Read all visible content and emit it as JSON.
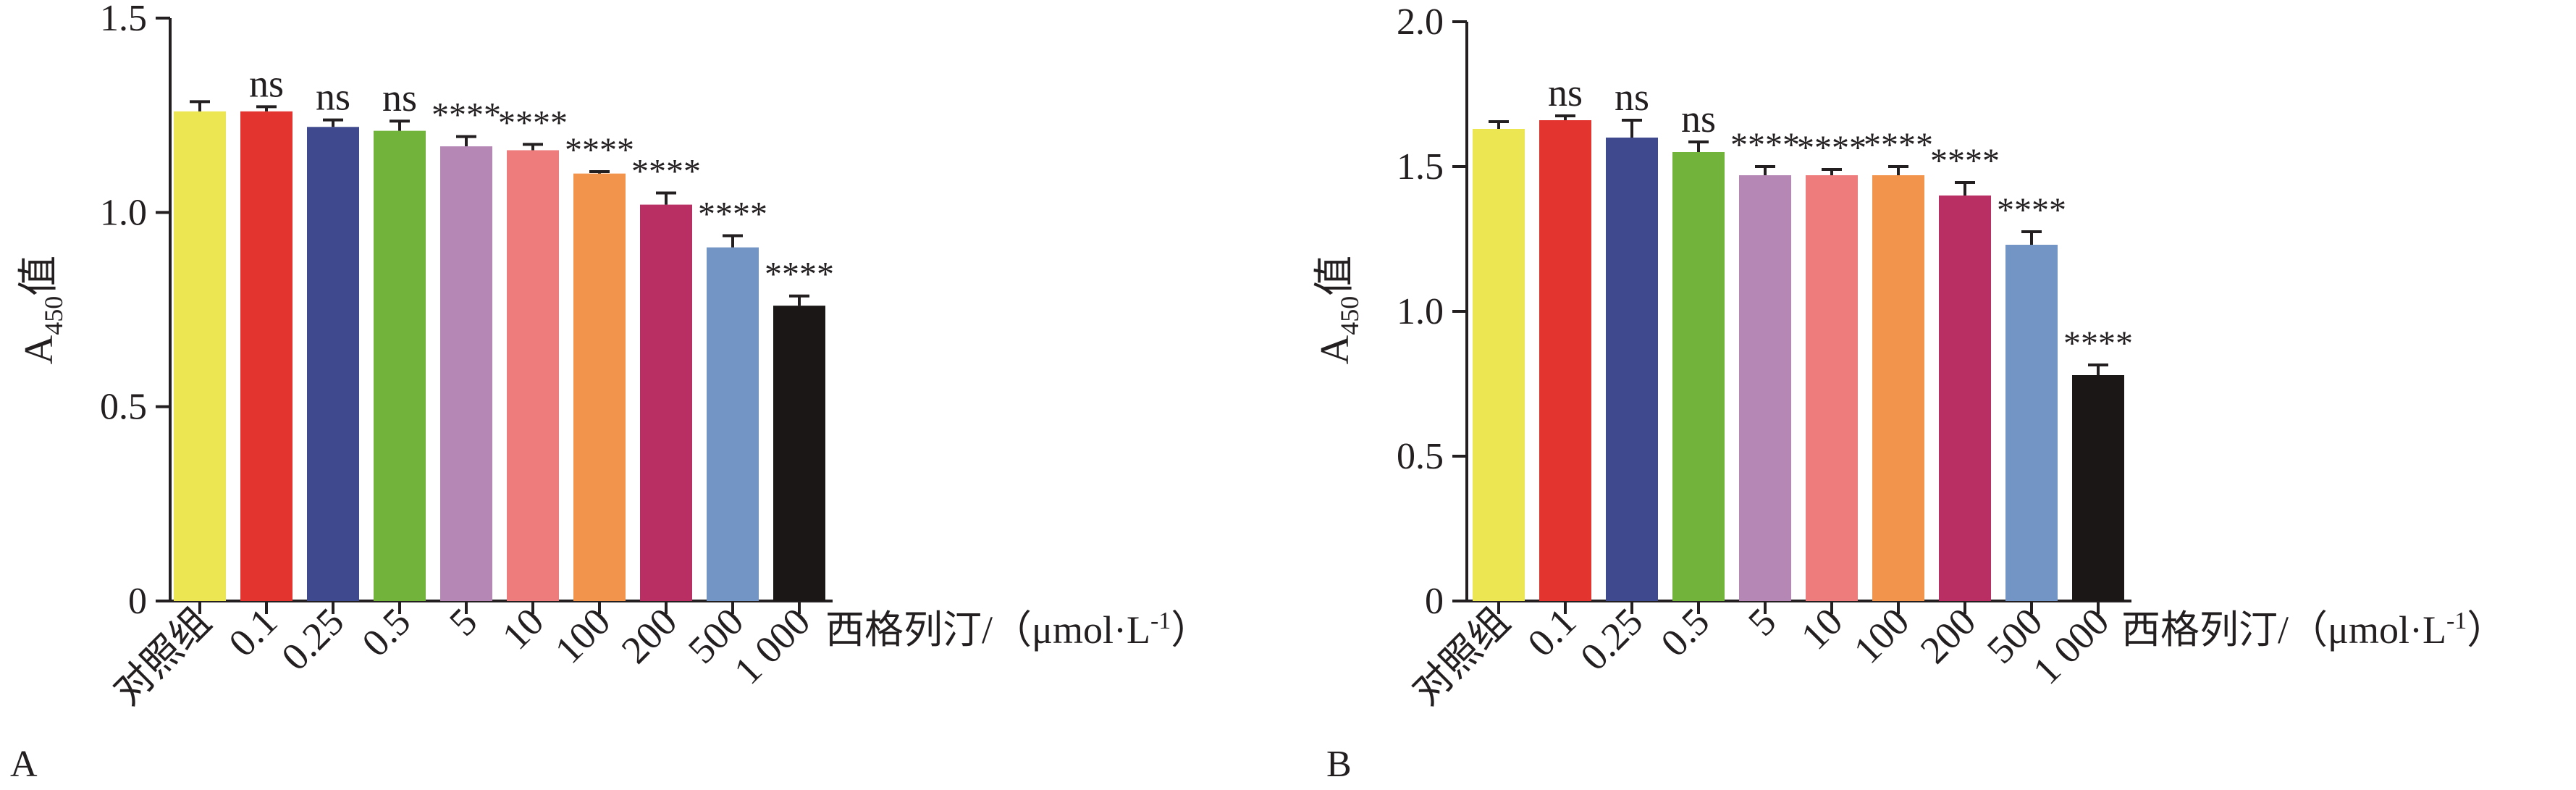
{
  "panels": [
    {
      "panel_label": "A",
      "y_axis_label_prefix": "A",
      "y_axis_label_subscript": "450",
      "y_axis_label_suffix": "值",
      "x_axis_label": "西格列汀/（μmol·L",
      "x_axis_label_superscript": "-1",
      "x_axis_label_close": "）"
    },
    {
      "panel_label": "B",
      "y_axis_label_prefix": "A",
      "y_axis_label_subscript": "450",
      "y_axis_label_suffix": "值",
      "x_axis_label": "西格列汀/（μmol·L",
      "x_axis_label_superscript": "-1",
      "x_axis_label_close": "）"
    }
  ],
  "chart_data": [
    {
      "type": "bar",
      "title": "",
      "xlabel": "西格列汀/（μmol·L-1）",
      "ylabel": "A450值",
      "ylim": [
        0,
        1.5
      ],
      "yticks": [
        "0",
        "0.5",
        "1.0",
        "1.5"
      ],
      "tick_values": [
        0,
        0.5,
        1.0,
        1.5
      ],
      "categories": [
        "对照组",
        "0.1",
        "0.25",
        "0.5",
        "5",
        "10",
        "100",
        "200",
        "500",
        "1 000"
      ],
      "values": [
        1.26,
        1.26,
        1.22,
        1.21,
        1.17,
        1.16,
        1.1,
        1.02,
        0.91,
        0.76
      ],
      "errors": [
        0.025,
        0.012,
        0.018,
        0.025,
        0.025,
        0.015,
        0.005,
        0.03,
        0.03,
        0.025
      ],
      "significance": [
        "",
        "ns",
        "ns",
        "ns",
        "****",
        "****",
        "****",
        "****",
        "****",
        "****"
      ],
      "colors": [
        "#ebe652",
        "#e3342f",
        "#3f4a8e",
        "#72b33c",
        "#b587b5",
        "#ef7c7d",
        "#f3944d",
        "#b92f63",
        "#7395c5",
        "#1a1716"
      ],
      "grid": false,
      "legend": "none"
    },
    {
      "type": "bar",
      "title": "",
      "xlabel": "西格列汀/（μmol·L-1）",
      "ylabel": "A450值",
      "ylim": [
        0,
        2.0
      ],
      "yticks": [
        "0",
        "0.5",
        "1.0",
        "1.5",
        "2.0"
      ],
      "tick_values": [
        0,
        0.5,
        1.0,
        1.5,
        2.0
      ],
      "categories": [
        "对照组",
        "0.1",
        "0.25",
        "0.5",
        "5",
        "10",
        "100",
        "200",
        "500",
        "1 000"
      ],
      "values": [
        1.63,
        1.66,
        1.6,
        1.55,
        1.47,
        1.47,
        1.47,
        1.4,
        1.23,
        0.78
      ],
      "errors": [
        0.025,
        0.015,
        0.06,
        0.035,
        0.03,
        0.02,
        0.03,
        0.045,
        0.045,
        0.035
      ],
      "significance": [
        "",
        "ns",
        "ns",
        "ns",
        "****",
        "****",
        "****",
        "****",
        "****",
        "****"
      ],
      "colors": [
        "#ebe652",
        "#e3342f",
        "#3f4a8e",
        "#72b33c",
        "#b587b5",
        "#ef7c7d",
        "#f3944d",
        "#b92f63",
        "#7395c5",
        "#1a1716"
      ],
      "grid": false,
      "legend": "none"
    }
  ]
}
